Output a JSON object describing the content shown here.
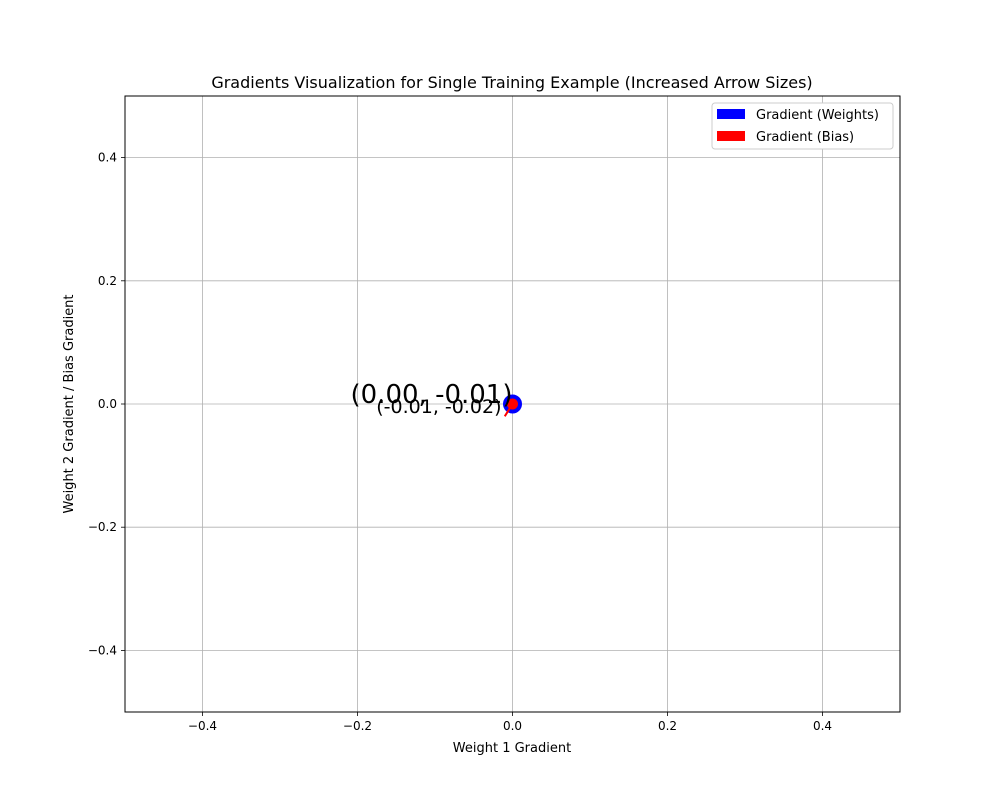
{
  "chart_data": {
    "type": "scatter",
    "title": "Gradients Visualization for Single Training Example (Increased Arrow Sizes)",
    "xlabel": "Weight 1 Gradient",
    "ylabel": "Weight 2 Gradient / Bias Gradient",
    "xlim": [
      -0.5,
      0.5
    ],
    "ylim": [
      -0.5,
      0.5
    ],
    "xticks": [
      -0.4,
      -0.2,
      0.0,
      0.2,
      0.4
    ],
    "yticks": [
      -0.4,
      -0.2,
      0.0,
      0.2,
      0.4
    ],
    "xtick_labels": [
      "−0.4",
      "−0.2",
      "0.0",
      "0.2",
      "0.4"
    ],
    "ytick_labels": [
      "−0.4",
      "−0.2",
      "0.0",
      "0.2",
      "0.4"
    ],
    "grid": true,
    "legend_position": "top-right",
    "series": [
      {
        "name": "Gradient (Weights)",
        "color": "#0000ff",
        "vector": [
          0.0,
          -0.01
        ],
        "label": "(0.00, -0.01)"
      },
      {
        "name": "Gradient (Bias)",
        "color": "#ff0000",
        "vector": [
          -0.01,
          -0.02
        ],
        "label": "(-0.01, -0.02)"
      }
    ]
  }
}
